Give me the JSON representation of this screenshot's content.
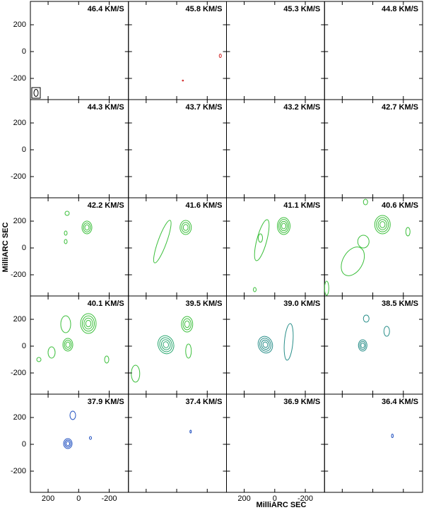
{
  "chart_data": {
    "type": "channel-map",
    "xlabel": "MilliARC SEC",
    "ylabel": "MilliARC SEC",
    "xlim": [
      316,
      -326
    ],
    "ylim": [
      -358,
      374
    ],
    "xticks": [
      200,
      0,
      -200
    ],
    "yticks": [
      200,
      0,
      -200
    ],
    "panels": [
      {
        "label": "46.4 KM/S"
      },
      {
        "label": "45.8 KM/S"
      },
      {
        "label": "45.3 KM/S"
      },
      {
        "label": "44.8 KM/S"
      },
      {
        "label": "44.3 KM/S"
      },
      {
        "label": "43.7 KM/S"
      },
      {
        "label": "43.2 KM/S"
      },
      {
        "label": "42.7 KM/S"
      },
      {
        "label": "42.2 KM/S"
      },
      {
        "label": "41.6 KM/S"
      },
      {
        "label": "41.1 KM/S"
      },
      {
        "label": "40.6 KM/S"
      },
      {
        "label": "40.1 KM/S"
      },
      {
        "label": "39.5 KM/S"
      },
      {
        "label": "39.0 KM/S"
      },
      {
        "label": "38.5 KM/S"
      },
      {
        "label": "37.9 KM/S"
      },
      {
        "label": "37.4 KM/S"
      },
      {
        "label": "36.9 KM/S"
      },
      {
        "label": "36.4 KM/S"
      }
    ]
  }
}
